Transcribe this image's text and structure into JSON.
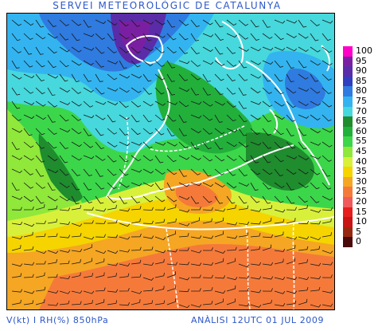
{
  "header": {
    "title": "SERVEI METEOROLÒGIC DE CATALUNYA"
  },
  "footer": {
    "left": "V(kt) I RH(%) 850hPa",
    "right": "ANÀLISI 12UTC 01 JUL 2009"
  },
  "legend": {
    "items": [
      {
        "label": "100",
        "color": "#ff00c8"
      },
      {
        "label": "95",
        "color": "#7b1fa2"
      },
      {
        "label": "90",
        "color": "#5a2ca8"
      },
      {
        "label": "85",
        "color": "#2f3fbf"
      },
      {
        "label": "80",
        "color": "#2f7be0"
      },
      {
        "label": "75",
        "color": "#33b4f0"
      },
      {
        "label": "70",
        "color": "#46d8dc"
      },
      {
        "label": "65",
        "color": "#1f8c2e"
      },
      {
        "label": "60",
        "color": "#22b03b"
      },
      {
        "label": "55",
        "color": "#3cd64a"
      },
      {
        "label": "45",
        "color": "#8fe83a"
      },
      {
        "label": "40",
        "color": "#d9f03a"
      },
      {
        "label": "35",
        "color": "#f5d400"
      },
      {
        "label": "30",
        "color": "#f5a623"
      },
      {
        "label": "25",
        "color": "#f57a3a"
      },
      {
        "label": "20",
        "color": "#f05a5a"
      },
      {
        "label": "15",
        "color": "#e61e1e"
      },
      {
        "label": "10",
        "color": "#c81414"
      },
      {
        "label": "5",
        "color": "#962810"
      },
      {
        "label": "0",
        "color": "#4a0a0a"
      }
    ]
  },
  "map": {
    "field": "relative humidity 850hPa with wind barbs",
    "colors": {
      "background_green": "#3cd64a",
      "dark_green": "#22b03b",
      "cyan": "#46d8dc",
      "light_blue": "#33b4f0",
      "blue": "#2f7be0",
      "purple": "#5a2ca8",
      "yellow": "#f5d400",
      "orange": "#f5a623",
      "salmon": "#f57a3a",
      "coast": "#ffffff"
    }
  }
}
